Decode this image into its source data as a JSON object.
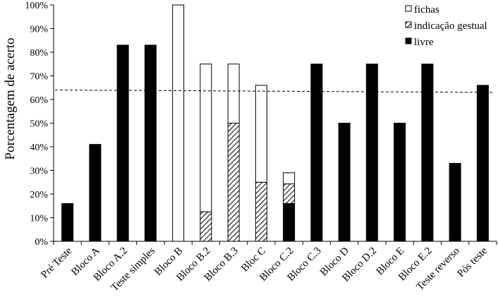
{
  "chart_data": {
    "type": "bar",
    "stacked": true,
    "title": "",
    "xlabel": "",
    "ylabel": "Porcentagem de acerto",
    "ylim": [
      0,
      100
    ],
    "yticks": [
      "0%",
      "10%",
      "20%",
      "30%",
      "40%",
      "50%",
      "60%",
      "70%",
      "80%",
      "90%",
      "100%"
    ],
    "grid": false,
    "legend_position": "top-right",
    "categories": [
      "Pré Teste",
      "Bloco A",
      "Bloco A.2",
      "Teste simples",
      "Bloco B",
      "Bloco B.2",
      "Bloco B.3",
      "Bloc C",
      "Bloco C.2",
      "Bloco C.3",
      "Bloco D",
      "Bloco D.2",
      "Bloco E",
      "Bloco E.2",
      "Teste reverso",
      "Pós teste"
    ],
    "series": [
      {
        "name": "livre",
        "fill": "solid",
        "color": "#000000",
        "values": [
          16,
          41,
          83,
          83,
          0,
          0,
          0,
          0,
          16,
          75,
          50,
          75,
          50,
          75,
          33,
          66
        ]
      },
      {
        "name": "indicação gestual",
        "fill": "hatch",
        "color": "#000000",
        "values": [
          0,
          0,
          0,
          0,
          0,
          12.5,
          50,
          25,
          8.3,
          0,
          0,
          0,
          0,
          0,
          0,
          0
        ]
      },
      {
        "name": "fichas",
        "fill": "white",
        "color": "#ffffff",
        "values": [
          0,
          0,
          0,
          0,
          100,
          62.5,
          25,
          41,
          4.7,
          0,
          0,
          0,
          0,
          0,
          0,
          0
        ]
      }
    ],
    "reference_line": {
      "style": "dashed",
      "from": 64,
      "to": 63
    }
  }
}
